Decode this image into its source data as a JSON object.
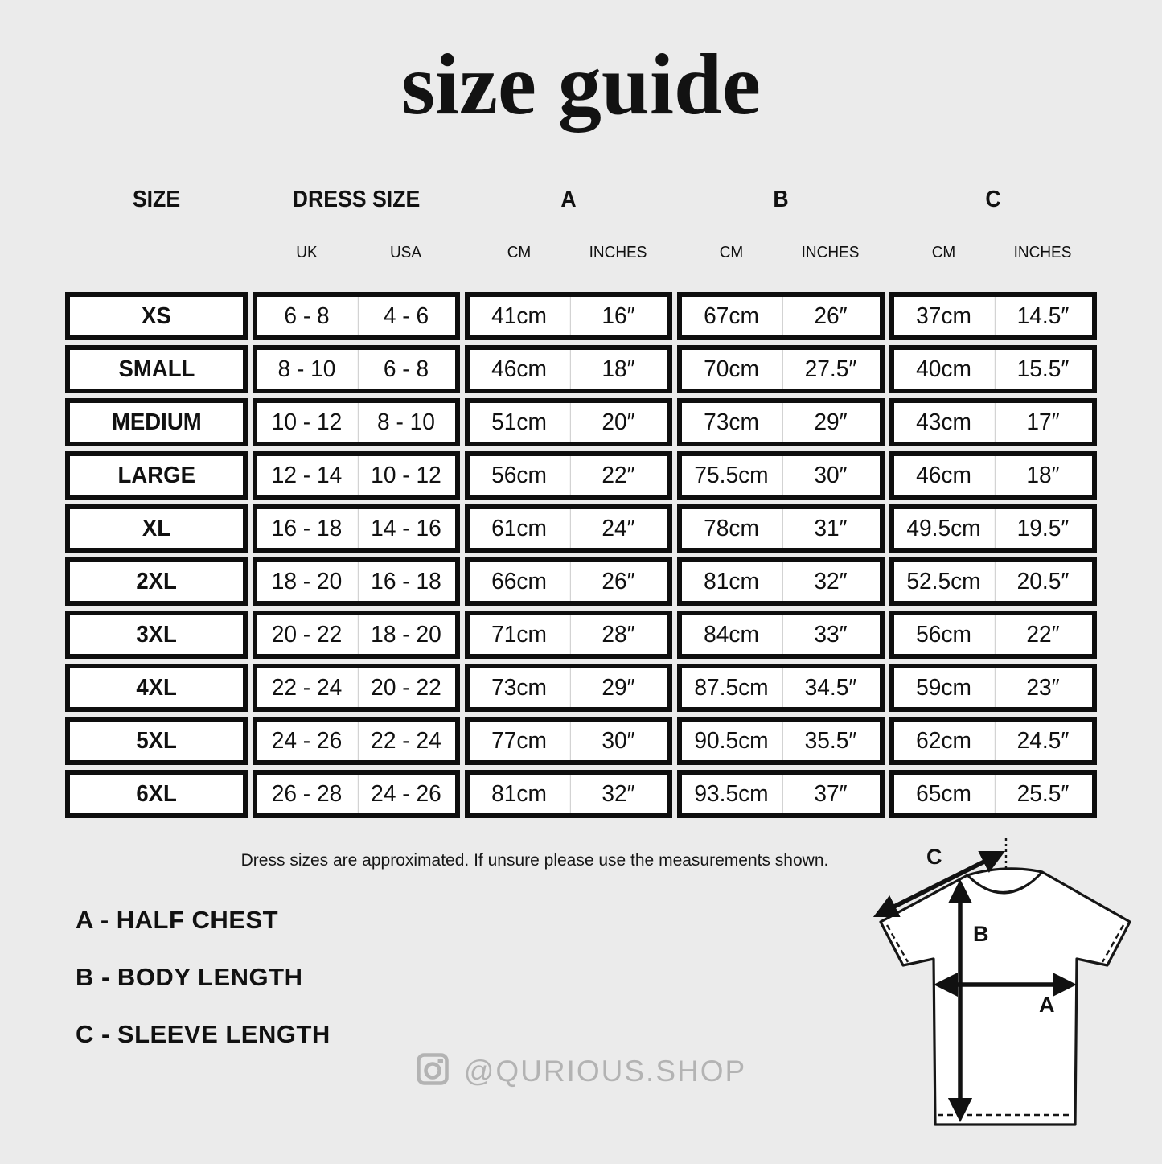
{
  "title": "size guide",
  "table": {
    "col_groups": [
      {
        "label": "SIZE",
        "sub": []
      },
      {
        "label": "DRESS SIZE",
        "sub": [
          "UK",
          "USA"
        ]
      },
      {
        "label": "A",
        "sub": [
          "CM",
          "INCHES"
        ]
      },
      {
        "label": "B",
        "sub": [
          "CM",
          "INCHES"
        ]
      },
      {
        "label": "C",
        "sub": [
          "CM",
          "INCHES"
        ]
      }
    ],
    "rows": [
      {
        "size": "XS",
        "values": [
          "6 - 8",
          "4 - 6",
          "41cm",
          "16″",
          "67cm",
          "26″",
          "37cm",
          "14.5″"
        ]
      },
      {
        "size": "SMALL",
        "values": [
          "8 - 10",
          "6 - 8",
          "46cm",
          "18″",
          "70cm",
          "27.5″",
          "40cm",
          "15.5″"
        ]
      },
      {
        "size": "MEDIUM",
        "values": [
          "10 - 12",
          "8 - 10",
          "51cm",
          "20″",
          "73cm",
          "29″",
          "43cm",
          "17″"
        ]
      },
      {
        "size": "LARGE",
        "values": [
          "12 - 14",
          "10 - 12",
          "56cm",
          "22″",
          "75.5cm",
          "30″",
          "46cm",
          "18″"
        ]
      },
      {
        "size": "XL",
        "values": [
          "16 - 18",
          "14 - 16",
          "61cm",
          "24″",
          "78cm",
          "31″",
          "49.5cm",
          "19.5″"
        ]
      },
      {
        "size": "2XL",
        "values": [
          "18 - 20",
          "16 - 18",
          "66cm",
          "26″",
          "81cm",
          "32″",
          "52.5cm",
          "20.5″"
        ]
      },
      {
        "size": "3XL",
        "values": [
          "20 - 22",
          "18 - 20",
          "71cm",
          "28″",
          "84cm",
          "33″",
          "56cm",
          "22″"
        ]
      },
      {
        "size": "4XL",
        "values": [
          "22 - 24",
          "20 - 22",
          "73cm",
          "29″",
          "87.5cm",
          "34.5″",
          "59cm",
          "23″"
        ]
      },
      {
        "size": "5XL",
        "values": [
          "24 - 26",
          "22 - 24",
          "77cm",
          "30″",
          "90.5cm",
          "35.5″",
          "62cm",
          "24.5″"
        ]
      },
      {
        "size": "6XL",
        "values": [
          "26 - 28",
          "24 - 26",
          "81cm",
          "32″",
          "93.5cm",
          "37″",
          "65cm",
          "25.5″"
        ]
      }
    ]
  },
  "note": "Dress sizes are approximated. If unsure please use the measurements shown.",
  "legend": [
    "A - HALF CHEST",
    "B - BODY LENGTH",
    "C - SLEEVE LENGTH"
  ],
  "diagram": {
    "labels": {
      "a": "A",
      "b": "B",
      "c": "C"
    }
  },
  "footer": {
    "instagram_handle": "@QURIOUS.SHOP"
  },
  "colors": {
    "background": "#ebebeb",
    "cell_fill": "#ffffff",
    "border": "#0e0e0e",
    "divider": "#c9c9c9",
    "muted_gray": "#b3b3b3"
  }
}
